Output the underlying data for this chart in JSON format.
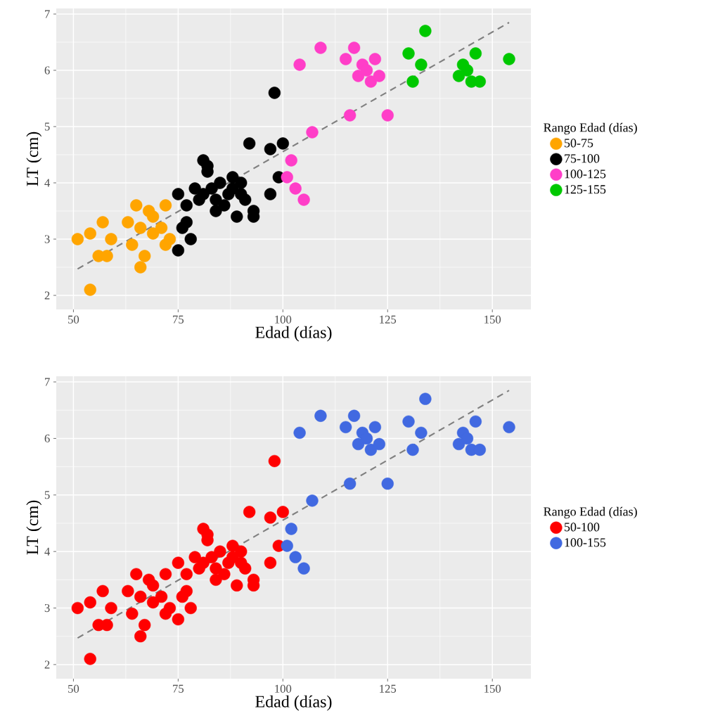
{
  "chart_data": [
    {
      "type": "scatter",
      "xlabel": "Edad (días)",
      "ylabel": "LT (cm)",
      "legend_title": "Rango Edad (días)",
      "legend": "right",
      "grid": true,
      "marker": "circle",
      "xlim": [
        45.9,
        159.2
      ],
      "ylim": [
        1.75,
        7.1
      ],
      "xticks": [
        50,
        75,
        100,
        125,
        150
      ],
      "yticks": [
        2,
        3,
        4,
        5,
        6,
        7
      ],
      "series": [
        {
          "name": "50-75",
          "color": "#ffa500",
          "x": [
            51,
            54,
            54,
            56,
            57,
            58,
            59,
            63,
            64,
            65,
            66,
            67,
            66,
            68,
            69,
            69,
            71,
            72,
            72,
            73
          ],
          "values": [
            3.0,
            3.1,
            2.1,
            2.7,
            3.3,
            2.7,
            3.0,
            3.3,
            2.9,
            3.6,
            2.5,
            2.7,
            3.2,
            3.5,
            3.4,
            3.1,
            3.2,
            2.9,
            3.6,
            3.0
          ]
        },
        {
          "name": "75-100",
          "color": "#000000",
          "x": [
            75,
            75,
            76,
            77,
            77,
            78,
            79,
            80,
            81,
            81,
            82,
            82,
            83,
            84,
            84,
            85,
            86,
            87,
            88,
            88,
            89,
            90,
            90,
            91,
            92,
            93,
            93,
            97,
            97,
            98,
            99,
            100
          ],
          "values": [
            2.8,
            3.8,
            3.2,
            3.3,
            3.6,
            3.0,
            3.9,
            3.7,
            4.4,
            3.8,
            4.3,
            4.2,
            3.9,
            3.5,
            3.7,
            4.0,
            3.6,
            3.8,
            4.1,
            3.9,
            3.4,
            3.8,
            4.0,
            3.7,
            4.7,
            3.5,
            3.4,
            3.8,
            4.6,
            5.6,
            4.1,
            4.7
          ]
        },
        {
          "name": "100-125",
          "color": "#ff3ec8",
          "x": [
            101,
            102,
            103,
            105,
            104,
            107,
            109,
            115,
            116,
            117,
            118,
            119,
            120,
            121,
            122,
            123,
            125
          ],
          "values": [
            4.1,
            4.4,
            3.9,
            3.7,
            6.1,
            4.9,
            6.4,
            6.2,
            5.2,
            6.4,
            5.9,
            6.1,
            6.0,
            5.8,
            6.2,
            5.9,
            5.2
          ]
        },
        {
          "name": "125-155",
          "color": "#00c800",
          "x": [
            130,
            131,
            133,
            134,
            142,
            143,
            144,
            145,
            146,
            147,
            154
          ],
          "values": [
            6.3,
            5.8,
            6.1,
            6.7,
            5.9,
            6.1,
            6.0,
            5.8,
            6.3,
            5.8,
            6.2
          ]
        },
        {
          "type": "line",
          "color": "#808080",
          "line_style": "dashed",
          "marker": "none",
          "x": [
            51,
            154
          ],
          "values": [
            2.47,
            6.85
          ]
        }
      ]
    },
    {
      "type": "scatter",
      "xlabel": "Edad (días)",
      "ylabel": "LT (cm)",
      "legend_title": "Rango Edad (días)",
      "legend": "right",
      "grid": true,
      "marker": "circle",
      "xlim": [
        45.9,
        159.2
      ],
      "ylim": [
        1.75,
        7.1
      ],
      "xticks": [
        50,
        75,
        100,
        125,
        150
      ],
      "yticks": [
        2,
        3,
        4,
        5,
        6,
        7
      ],
      "series": [
        {
          "name": "50-100",
          "color": "#ff0000",
          "x": [
            51,
            54,
            54,
            56,
            57,
            58,
            59,
            63,
            64,
            65,
            66,
            67,
            66,
            68,
            69,
            69,
            71,
            72,
            72,
            73,
            75,
            75,
            76,
            77,
            77,
            78,
            79,
            80,
            81,
            81,
            82,
            82,
            83,
            84,
            84,
            85,
            86,
            87,
            88,
            88,
            89,
            90,
            90,
            91,
            92,
            93,
            93,
            97,
            97,
            98,
            99,
            100
          ],
          "values": [
            3.0,
            3.1,
            2.1,
            2.7,
            3.3,
            2.7,
            3.0,
            3.3,
            2.9,
            3.6,
            2.5,
            2.7,
            3.2,
            3.5,
            3.4,
            3.1,
            3.2,
            2.9,
            3.6,
            3.0,
            2.8,
            3.8,
            3.2,
            3.3,
            3.6,
            3.0,
            3.9,
            3.7,
            4.4,
            3.8,
            4.3,
            4.2,
            3.9,
            3.5,
            3.7,
            4.0,
            3.6,
            3.8,
            4.1,
            3.9,
            3.4,
            3.8,
            4.0,
            3.7,
            4.7,
            3.5,
            3.4,
            3.8,
            4.6,
            5.6,
            4.1,
            4.7
          ]
        },
        {
          "name": "100-155",
          "color": "#4169e1",
          "x": [
            101,
            102,
            103,
            105,
            104,
            107,
            109,
            115,
            116,
            117,
            118,
            119,
            120,
            121,
            122,
            123,
            125,
            130,
            131,
            133,
            134,
            142,
            143,
            144,
            145,
            146,
            147,
            154
          ],
          "values": [
            4.1,
            4.4,
            3.9,
            3.7,
            6.1,
            4.9,
            6.4,
            6.2,
            5.2,
            6.4,
            5.9,
            6.1,
            6.0,
            5.8,
            6.2,
            5.9,
            5.2,
            6.3,
            5.8,
            6.1,
            6.7,
            5.9,
            6.1,
            6.0,
            5.8,
            6.3,
            5.8,
            6.2
          ]
        },
        {
          "type": "line",
          "color": "#808080",
          "line_style": "dashed",
          "marker": "none",
          "x": [
            51,
            154
          ],
          "values": [
            2.47,
            6.85
          ]
        }
      ]
    }
  ]
}
